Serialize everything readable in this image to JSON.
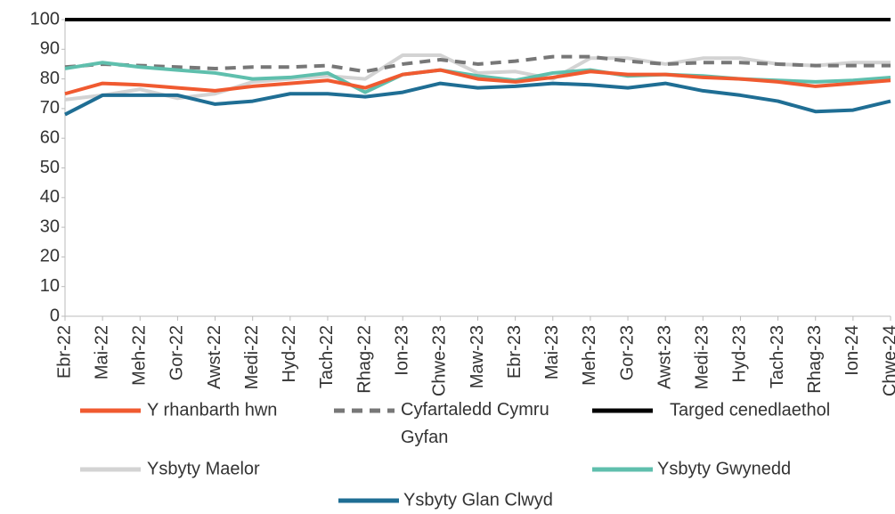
{
  "chart_data": {
    "type": "line",
    "categories": [
      "Ebr-22",
      "Mai-22",
      "Meh-22",
      "Gor-22",
      "Awst-22",
      "Medi-22",
      "Hyd-22",
      "Tach-22",
      "Rhag-22",
      "Ion-23",
      "Chwe-23",
      "Maw-23",
      "Ebr-23",
      "Mai-23",
      "Meh-23",
      "Gor-23",
      "Awst-23",
      "Medi-23",
      "Hyd-23",
      "Tach-23",
      "Rhag-23",
      "Ion-24",
      "Chwe-24"
    ],
    "ylim": [
      0,
      100
    ],
    "yticks": [
      0,
      10,
      20,
      30,
      40,
      50,
      60,
      70,
      80,
      90,
      100
    ],
    "series": [
      {
        "name": "Y rhanbarth hwn",
        "color": "#f05a30",
        "values": [
          75,
          78.5,
          78,
          77,
          76,
          77.5,
          78.5,
          79.5,
          77,
          81.5,
          83,
          80,
          79,
          80.5,
          82.5,
          81.5,
          81.5,
          80.5,
          80,
          79,
          77.5,
          78.5,
          79.5
        ]
      },
      {
        "name": "Cyfartaledd Cymru Gyfan",
        "color": "#777777",
        "dashed": true,
        "values": [
          84,
          85,
          84.5,
          84,
          83.5,
          84,
          84,
          84.5,
          82.5,
          85,
          86.5,
          85,
          86,
          87.5,
          87.5,
          86,
          85,
          85.5,
          85.5,
          85,
          84.5,
          84.5,
          84.5
        ]
      },
      {
        "name": "Targed cenedlaethol",
        "color": "#000000",
        "values": [
          100,
          100,
          100,
          100,
          100,
          100,
          100,
          100,
          100,
          100,
          100,
          100,
          100,
          100,
          100,
          100,
          100,
          100,
          100,
          100,
          100,
          100,
          100
        ]
      },
      {
        "name": "Ysbyty Maelor",
        "color": "#d3d3d3",
        "values": [
          73,
          74.5,
          76.5,
          73.5,
          75,
          79,
          80,
          81,
          80,
          88,
          88,
          82,
          82.5,
          80,
          87,
          87,
          85,
          87,
          87,
          85,
          84.5,
          85.5,
          85.5
        ]
      },
      {
        "name": "Ysbyty Gwynedd",
        "color": "#5fbfad",
        "values": [
          83.5,
          85.5,
          84,
          83,
          82,
          80,
          80.5,
          82,
          75.5,
          81.5,
          83,
          81,
          79.5,
          82,
          83,
          81,
          81.5,
          81,
          80,
          79.5,
          79,
          79.5,
          80.5
        ]
      },
      {
        "name": "Ysbyty Glan Clwyd",
        "color": "#1f6e94",
        "values": [
          68,
          74.5,
          74.5,
          74.5,
          71.5,
          72.5,
          75,
          75,
          74,
          75.5,
          78.5,
          77,
          77.5,
          78.5,
          78,
          77,
          78.5,
          76,
          74.5,
          72.5,
          69,
          69.5,
          72.5
        ]
      }
    ]
  }
}
